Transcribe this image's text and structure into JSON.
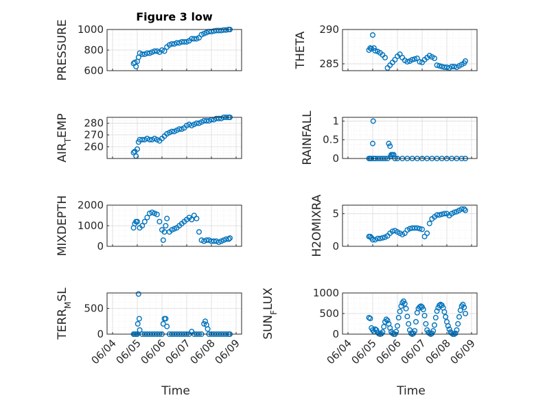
{
  "figure": {
    "title": "Figure 3 low",
    "marker_color": "#0072bd",
    "x_tick_labels": [
      "06/04",
      "06/05",
      "06/06",
      "06/07",
      "06/08",
      "06/09"
    ],
    "x_label": "Time"
  },
  "chart_data": [
    {
      "type": "scatter",
      "title": "Figure 3 low",
      "ylabel": "PRESSURE",
      "xlim": [
        4,
        9
      ],
      "ylim": [
        600,
        1000
      ],
      "yticks": [
        600,
        800,
        1000
      ],
      "ytick_labels": [
        "600",
        "800",
        "1000"
      ],
      "grid": true,
      "series": [
        {
          "x": [
            4.85,
            4.9,
            4.95,
            5.0,
            5.05,
            5.1,
            5.2,
            5.3,
            5.4,
            5.5,
            5.6,
            5.7,
            5.8,
            5.9,
            6.0,
            6.1,
            6.2,
            6.3,
            6.4,
            6.5,
            6.6,
            6.7,
            6.8,
            6.9,
            7.0,
            7.1,
            7.2,
            7.3,
            7.4,
            7.5,
            7.6,
            7.7,
            7.8,
            7.9,
            8.0,
            8.1,
            8.2,
            8.3,
            8.4,
            8.5,
            8.6,
            8.7,
            8.75
          ],
          "y": [
            670,
            680,
            640,
            690,
            730,
            770,
            760,
            760,
            770,
            770,
            780,
            790,
            790,
            780,
            800,
            790,
            830,
            850,
            860,
            860,
            870,
            870,
            880,
            880,
            880,
            890,
            910,
            910,
            910,
            920,
            950,
            960,
            970,
            980,
            980,
            985,
            990,
            990,
            990,
            995,
            995,
            1000,
            1000
          ]
        }
      ]
    },
    {
      "type": "scatter",
      "ylabel": "THETA",
      "xlim": [
        4,
        9
      ],
      "ylim": [
        284,
        290
      ],
      "yticks": [
        285,
        290
      ],
      "ytick_labels": [
        "285",
        "290"
      ],
      "grid": true,
      "series": [
        {
          "x": [
            4.85,
            4.9,
            4.95,
            5.0,
            5.05,
            5.1,
            5.2,
            5.3,
            5.4,
            5.5,
            5.6,
            5.7,
            5.8,
            5.9,
            6.0,
            6.1,
            6.2,
            6.3,
            6.4,
            6.5,
            6.6,
            6.7,
            6.8,
            6.9,
            7.0,
            7.1,
            7.2,
            7.3,
            7.4,
            7.5,
            7.6,
            7.7,
            7.8,
            7.9,
            8.0,
            8.1,
            8.2,
            8.3,
            8.4,
            8.5,
            8.6,
            8.7,
            8.75
          ],
          "y": [
            287.0,
            287.3,
            287.2,
            289.2,
            287.3,
            286.9,
            286.8,
            286.6,
            286.3,
            285.9,
            284.4,
            284.8,
            285.2,
            285.6,
            286.1,
            286.4,
            285.9,
            285.5,
            285.3,
            285.4,
            285.6,
            285.7,
            285.8,
            285.3,
            285.2,
            285.6,
            285.9,
            286.2,
            286.0,
            285.8,
            284.8,
            284.7,
            284.6,
            284.5,
            284.5,
            284.4,
            284.6,
            284.6,
            284.5,
            284.7,
            284.9,
            285.1,
            285.4
          ]
        }
      ]
    },
    {
      "type": "scatter",
      "ylabel": "AIR_TEMP",
      "xlim": [
        4,
        9
      ],
      "ylim": [
        250,
        285
      ],
      "yticks": [
        260,
        270,
        280
      ],
      "ytick_labels": [
        "260",
        "270",
        "280"
      ],
      "grid": true,
      "series": [
        {
          "x": [
            4.85,
            4.9,
            4.95,
            5.0,
            5.05,
            5.1,
            5.2,
            5.3,
            5.4,
            5.5,
            5.6,
            5.7,
            5.8,
            5.9,
            6.0,
            6.1,
            6.2,
            6.3,
            6.4,
            6.5,
            6.6,
            6.7,
            6.8,
            6.9,
            7.0,
            7.1,
            7.2,
            7.3,
            7.4,
            7.5,
            7.6,
            7.7,
            7.8,
            7.9,
            8.0,
            8.1,
            8.2,
            8.3,
            8.4,
            8.5,
            8.6,
            8.7,
            8.75
          ],
          "y": [
            255,
            256,
            252,
            258,
            264,
            266,
            266,
            266,
            267,
            266,
            266,
            267,
            266,
            265,
            267,
            269,
            271,
            272,
            273,
            273,
            274,
            275,
            275,
            276,
            278,
            279,
            278,
            279,
            280,
            280,
            281,
            282,
            282,
            282,
            283,
            283,
            284,
            284,
            284,
            285,
            285,
            285,
            285
          ]
        }
      ]
    },
    {
      "type": "scatter",
      "ylabel": "RAINFALL",
      "xlim": [
        4,
        9
      ],
      "ylim": [
        0,
        1.1
      ],
      "yticks": [
        0,
        0.5,
        1
      ],
      "ytick_labels": [
        "0",
        "0.5",
        "1"
      ],
      "grid": true,
      "series": [
        {
          "x": [
            4.85,
            4.9,
            4.95,
            5.0,
            5.02,
            5.05,
            5.1,
            5.2,
            5.3,
            5.4,
            5.5,
            5.6,
            5.65,
            5.7,
            5.72,
            5.75,
            5.8,
            5.85,
            5.9,
            6.0,
            6.2,
            6.4,
            6.6,
            6.8,
            7.0,
            7.2,
            7.4,
            7.6,
            7.8,
            8.0,
            8.2,
            8.4,
            8.6,
            8.75
          ],
          "y": [
            0,
            0,
            0,
            0.4,
            1.0,
            0,
            0,
            0,
            0,
            0,
            0,
            0,
            0.4,
            0.33,
            0.05,
            0.1,
            0.1,
            0.1,
            0,
            0,
            0,
            0,
            0,
            0,
            0,
            0,
            0,
            0,
            0,
            0,
            0,
            0,
            0,
            0
          ]
        }
      ]
    },
    {
      "type": "scatter",
      "ylabel": "MIXDEPTH",
      "xlim": [
        4,
        9
      ],
      "ylim": [
        0,
        2000
      ],
      "yticks": [
        0,
        1000,
        2000
      ],
      "ytick_labels": [
        "0",
        "1000",
        "2000"
      ],
      "grid": true,
      "series": [
        {
          "x": [
            4.85,
            4.9,
            4.95,
            5.0,
            5.1,
            5.2,
            5.3,
            5.4,
            5.5,
            5.6,
            5.7,
            5.8,
            5.9,
            6.0,
            6.05,
            6.1,
            6.15,
            6.2,
            6.3,
            6.4,
            6.5,
            6.6,
            6.7,
            6.8,
            6.9,
            7.0,
            7.1,
            7.2,
            7.3,
            7.4,
            7.5,
            7.6,
            7.7,
            7.8,
            7.9,
            8.0,
            8.1,
            8.2,
            8.3,
            8.4,
            8.5,
            8.6,
            8.7,
            8.75
          ],
          "y": [
            900,
            1100,
            1200,
            1200,
            900,
            1000,
            1200,
            1400,
            1600,
            1650,
            1600,
            1550,
            1200,
            800,
            300,
            700,
            1000,
            1350,
            700,
            800,
            850,
            900,
            1000,
            1100,
            1200,
            1300,
            1400,
            1300,
            1500,
            1350,
            700,
            300,
            250,
            300,
            300,
            250,
            250,
            250,
            200,
            250,
            300,
            350,
            350,
            400
          ]
        }
      ]
    },
    {
      "type": "scatter",
      "ylabel": "H2OMIXRA",
      "xlim": [
        4,
        9
      ],
      "ylim": [
        0,
        6.3
      ],
      "yticks": [
        0,
        5
      ],
      "ytick_labels": [
        "0",
        "5"
      ],
      "grid": true,
      "series": [
        {
          "x": [
            4.85,
            4.9,
            4.95,
            5.0,
            5.1,
            5.2,
            5.3,
            5.4,
            5.5,
            5.6,
            5.7,
            5.8,
            5.9,
            6.0,
            6.1,
            6.2,
            6.3,
            6.4,
            6.5,
            6.6,
            6.7,
            6.8,
            6.9,
            7.0,
            7.1,
            7.2,
            7.3,
            7.4,
            7.5,
            7.6,
            7.7,
            7.8,
            7.9,
            8.0,
            8.1,
            8.2,
            8.3,
            8.4,
            8.5,
            8.6,
            8.7,
            8.75
          ],
          "y": [
            1.5,
            1.5,
            1.3,
            1.0,
            1.0,
            1.2,
            1.2,
            1.3,
            1.4,
            1.6,
            2.0,
            2.3,
            2.4,
            2.2,
            2.0,
            1.8,
            2.0,
            2.5,
            2.7,
            2.8,
            2.8,
            2.8,
            2.7,
            2.6,
            1.5,
            2.0,
            3.5,
            4.2,
            4.5,
            4.8,
            4.8,
            4.9,
            5.0,
            5.0,
            4.7,
            5.0,
            5.2,
            5.3,
            5.5,
            5.7,
            5.7,
            5.5
          ]
        }
      ]
    },
    {
      "type": "scatter",
      "ylabel": "TERR_MSL",
      "xlim": [
        4,
        9
      ],
      "ylim": [
        0,
        800
      ],
      "yticks": [
        0,
        500
      ],
      "ytick_labels": [
        "0",
        "500"
      ],
      "grid": true,
      "series": [
        {
          "x": [
            4.85,
            4.9,
            4.95,
            5.0,
            5.02,
            5.05,
            5.08,
            5.1,
            5.2,
            5.3,
            5.4,
            5.5,
            5.6,
            5.7,
            5.8,
            5.9,
            6.0,
            6.05,
            6.1,
            6.15,
            6.2,
            6.3,
            6.4,
            6.5,
            6.6,
            6.7,
            6.8,
            6.9,
            7.0,
            7.1,
            7.2,
            7.3,
            7.4,
            7.5,
            7.6,
            7.7,
            7.75,
            7.8,
            7.85,
            7.9,
            8.0,
            8.1,
            8.2,
            8.3,
            8.4,
            8.5,
            8.6,
            8.7,
            8.75
          ],
          "y": [
            0,
            0,
            0,
            0,
            200,
            780,
            300,
            80,
            0,
            0,
            0,
            0,
            0,
            0,
            0,
            0,
            0,
            200,
            300,
            300,
            150,
            0,
            0,
            0,
            0,
            0,
            0,
            0,
            0,
            0,
            50,
            0,
            0,
            0,
            0,
            200,
            250,
            180,
            100,
            0,
            0,
            0,
            0,
            0,
            0,
            0,
            0,
            0,
            0
          ]
        }
      ]
    },
    {
      "type": "scatter",
      "ylabel": "SUN_FLUX",
      "xlim": [
        4,
        9
      ],
      "ylim": [
        0,
        1000
      ],
      "yticks": [
        0,
        500,
        1000
      ],
      "ytick_labels": [
        "0",
        "500",
        "1000"
      ],
      "grid": true,
      "series": [
        {
          "x": [
            4.85,
            4.9,
            4.95,
            5.0,
            5.05,
            5.1,
            5.15,
            5.2,
            5.25,
            5.3,
            5.35,
            5.4,
            5.45,
            5.5,
            5.55,
            5.6,
            5.65,
            5.7,
            5.75,
            5.8,
            5.85,
            5.9,
            5.95,
            6.0,
            6.05,
            6.1,
            6.15,
            6.2,
            6.25,
            6.3,
            6.35,
            6.4,
            6.45,
            6.5,
            6.55,
            6.6,
            6.65,
            6.7,
            6.75,
            6.8,
            6.85,
            6.9,
            6.95,
            7.0,
            7.05,
            7.1,
            7.15,
            7.2,
            7.25,
            7.3,
            7.35,
            7.4,
            7.45,
            7.5,
            7.55,
            7.6,
            7.65,
            7.7,
            7.75,
            7.8,
            7.85,
            7.9,
            7.95,
            8.0,
            8.05,
            8.1,
            8.15,
            8.2,
            8.25,
            8.3,
            8.35,
            8.4,
            8.45,
            8.5,
            8.55,
            8.6,
            8.65,
            8.7,
            8.75
          ],
          "y": [
            400,
            380,
            150,
            100,
            60,
            120,
            100,
            40,
            10,
            0,
            10,
            50,
            180,
            300,
            360,
            330,
            250,
            150,
            60,
            20,
            0,
            0,
            60,
            200,
            400,
            550,
            680,
            760,
            800,
            740,
            620,
            430,
            250,
            100,
            20,
            0,
            20,
            80,
            300,
            520,
            620,
            660,
            680,
            660,
            600,
            450,
            250,
            100,
            40,
            20,
            0,
            20,
            80,
            220,
            400,
            560,
            640,
            700,
            720,
            700,
            640,
            540,
            420,
            300,
            200,
            120,
            50,
            20,
            0,
            0,
            20,
            100,
            250,
            420,
            580,
            680,
            720,
            650,
            500
          ]
        }
      ]
    }
  ]
}
